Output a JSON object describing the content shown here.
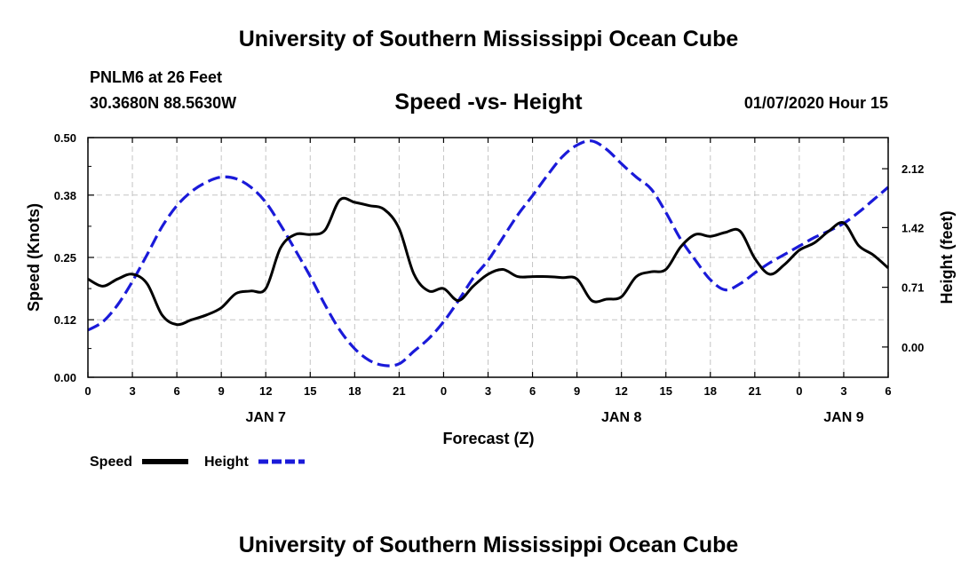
{
  "header": {
    "title": "University of Southern Mississippi Ocean Cube",
    "station": "PNLM6 at 26 Feet",
    "coordinates": "30.3680N 88.5630W",
    "timestamp": "01/07/2020 Hour 15"
  },
  "footer": {
    "title": "University of Southern Mississippi Ocean Cube"
  },
  "chart_data": {
    "type": "line",
    "title": "Speed -vs- Height",
    "xlabel": "Forecast (Z)",
    "ylabel_left": "Speed (Knots)",
    "ylabel_right": "Height (feet)",
    "x_unit": "hours since JAN 7 00Z",
    "xlim": [
      0,
      54
    ],
    "ylim_left": [
      0.0,
      0.5
    ],
    "ylim_right": [
      -0.36,
      2.49
    ],
    "x_ticks": [
      0,
      3,
      6,
      9,
      12,
      15,
      18,
      21,
      24,
      27,
      30,
      33,
      36,
      39,
      42,
      45,
      48,
      51,
      54
    ],
    "x_tick_labels": [
      "0",
      "3",
      "6",
      "9",
      "12",
      "15",
      "18",
      "21",
      "0",
      "3",
      "6",
      "9",
      "12",
      "15",
      "18",
      "21",
      "0",
      "3",
      "6"
    ],
    "day_labels": [
      {
        "x": 12,
        "label": "JAN 7"
      },
      {
        "x": 36,
        "label": "JAN 8"
      },
      {
        "x": 51,
        "label": "JAN 9"
      }
    ],
    "yticks_left": [
      0.0,
      0.12,
      0.25,
      0.38,
      0.5
    ],
    "yticks_left_labels": [
      "0.00",
      "0.12",
      "0.25",
      "0.38",
      "0.50"
    ],
    "yticks_right": [
      0.0,
      0.71,
      1.42,
      2.12
    ],
    "yticks_right_labels": [
      "0.00",
      "0.71",
      "1.42",
      "2.12"
    ],
    "grid": true,
    "legend_position": "bottom-left",
    "series": [
      {
        "name": "Speed",
        "axis": "left",
        "color": "#000000",
        "style": "solid",
        "x": [
          0,
          1,
          2,
          3,
          4,
          5,
          6,
          7,
          8,
          9,
          10,
          11,
          12,
          13,
          14,
          15,
          16,
          17,
          18,
          19,
          20,
          21,
          22,
          23,
          24,
          25,
          26,
          27,
          28,
          29,
          30,
          31,
          32,
          33,
          34,
          35,
          36,
          37,
          38,
          39,
          40,
          41,
          42,
          43,
          44,
          45,
          46,
          47,
          48,
          49,
          50,
          51,
          52,
          53,
          54
        ],
        "values": [
          0.205,
          0.19,
          0.205,
          0.215,
          0.195,
          0.13,
          0.11,
          0.12,
          0.13,
          0.145,
          0.175,
          0.18,
          0.185,
          0.27,
          0.298,
          0.298,
          0.307,
          0.37,
          0.365,
          0.358,
          0.35,
          0.31,
          0.215,
          0.18,
          0.185,
          0.16,
          0.19,
          0.215,
          0.225,
          0.21,
          0.21,
          0.21,
          0.208,
          0.205,
          0.16,
          0.163,
          0.168,
          0.21,
          0.22,
          0.225,
          0.272,
          0.298,
          0.294,
          0.302,
          0.305,
          0.248,
          0.215,
          0.235,
          0.265,
          0.28,
          0.305,
          0.322,
          0.275,
          0.255,
          0.228
        ]
      },
      {
        "name": "Height",
        "axis": "right",
        "color": "#1a1ad9",
        "style": "dashed",
        "x": [
          0,
          1,
          2,
          3,
          4,
          5,
          6,
          7,
          8,
          9,
          10,
          11,
          12,
          13,
          14,
          15,
          16,
          17,
          18,
          19,
          20,
          21,
          22,
          23,
          24,
          25,
          26,
          27,
          28,
          29,
          30,
          31,
          32,
          33,
          34,
          35,
          36,
          37,
          38,
          39,
          40,
          41,
          42,
          43,
          44,
          45,
          46,
          47,
          48,
          49,
          50,
          51,
          52,
          53,
          54
        ],
        "values": [
          0.2,
          0.3,
          0.5,
          0.78,
          1.1,
          1.43,
          1.68,
          1.85,
          1.96,
          2.02,
          2.0,
          1.9,
          1.72,
          1.45,
          1.15,
          0.84,
          0.5,
          0.2,
          -0.02,
          -0.16,
          -0.22,
          -0.2,
          -0.05,
          0.1,
          0.3,
          0.55,
          0.82,
          1.03,
          1.3,
          1.57,
          1.8,
          2.04,
          2.26,
          2.4,
          2.45,
          2.35,
          2.18,
          2.02,
          1.88,
          1.6,
          1.28,
          1.03,
          0.8,
          0.68,
          0.75,
          0.88,
          1.0,
          1.1,
          1.2,
          1.3,
          1.38,
          1.47,
          1.6,
          1.75,
          1.9
        ]
      }
    ]
  }
}
